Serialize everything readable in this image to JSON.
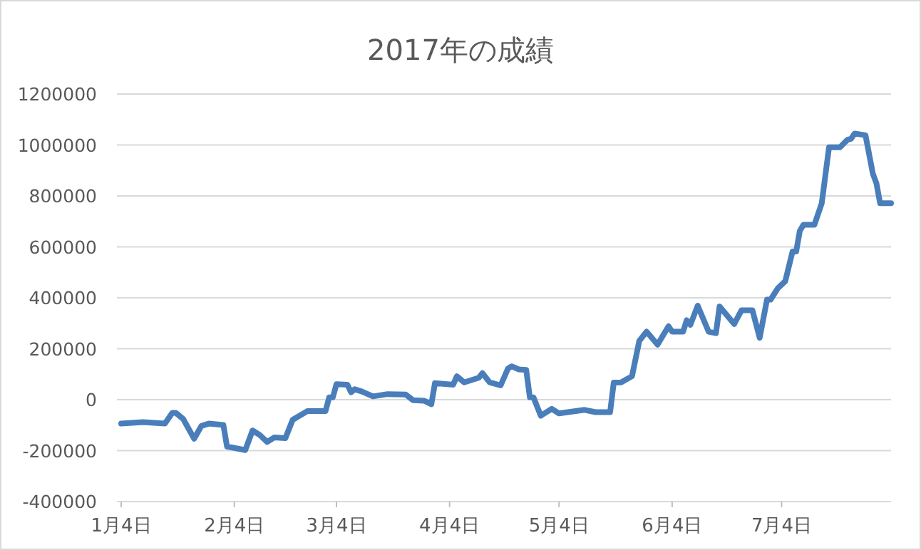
{
  "chart_data": {
    "type": "line",
    "title": "2017年の成績",
    "x": [
      "2017-01-04",
      "2017-01-10",
      "2017-01-16",
      "2017-01-18",
      "2017-01-19",
      "2017-01-21",
      "2017-01-24",
      "2017-01-26",
      "2017-01-28",
      "2017-02-01",
      "2017-02-02",
      "2017-02-07",
      "2017-02-09",
      "2017-02-11",
      "2017-02-13",
      "2017-02-15",
      "2017-02-18",
      "2017-02-20",
      "2017-02-24",
      "2017-03-01",
      "2017-03-02",
      "2017-03-03",
      "2017-03-04",
      "2017-03-07",
      "2017-03-08",
      "2017-03-09",
      "2017-03-11",
      "2017-03-14",
      "2017-03-18",
      "2017-03-23",
      "2017-03-25",
      "2017-03-28",
      "2017-03-30",
      "2017-03-31",
      "2017-04-05",
      "2017-04-06",
      "2017-04-08",
      "2017-04-10",
      "2017-04-12",
      "2017-04-13",
      "2017-04-15",
      "2017-04-18",
      "2017-04-20",
      "2017-04-21",
      "2017-04-23",
      "2017-04-25",
      "2017-04-26",
      "2017-04-27",
      "2017-04-29",
      "2017-05-02",
      "2017-05-04",
      "2017-05-11",
      "2017-05-14",
      "2017-05-18",
      "2017-05-19",
      "2017-05-21",
      "2017-05-24",
      "2017-05-26",
      "2017-05-28",
      "2017-05-31",
      "2017-06-03",
      "2017-06-04",
      "2017-06-07",
      "2017-06-08",
      "2017-06-09",
      "2017-06-11",
      "2017-06-14",
      "2017-06-16",
      "2017-06-17",
      "2017-06-21",
      "2017-06-23",
      "2017-06-26",
      "2017-06-28",
      "2017-06-30",
      "2017-07-01",
      "2017-07-03",
      "2017-07-05",
      "2017-07-07",
      "2017-07-08",
      "2017-07-09",
      "2017-07-10",
      "2017-07-13",
      "2017-07-15",
      "2017-07-17",
      "2017-07-20",
      "2017-07-22",
      "2017-07-23",
      "2017-07-24",
      "2017-07-27",
      "2017-07-29",
      "2017-07-30",
      "2017-07-31",
      "2017-08-03"
    ],
    "series": [
      {
        "color": "#4a7ebb",
        "values": [
          -94000,
          -88000,
          -94000,
          -52000,
          -52000,
          -76000,
          -153000,
          -103000,
          -94000,
          -99000,
          -184000,
          -198000,
          -121000,
          -139000,
          -166000,
          -148000,
          -151000,
          -79000,
          -45000,
          -45000,
          9000,
          9000,
          61000,
          59000,
          29000,
          41000,
          32000,
          13000,
          22000,
          20000,
          -2000,
          -4000,
          -18000,
          65000,
          59000,
          92000,
          68000,
          77000,
          86000,
          104000,
          68000,
          56000,
          122000,
          131000,
          119000,
          117000,
          9000,
          9000,
          -63000,
          -36000,
          -54000,
          -40000,
          -49000,
          -49000,
          67000,
          68000,
          92000,
          231000,
          267000,
          216000,
          288000,
          267000,
          267000,
          312000,
          294000,
          369000,
          267000,
          261000,
          366000,
          297000,
          351000,
          351000,
          243000,
          393000,
          393000,
          438000,
          465000,
          582000,
          582000,
          663000,
          687000,
          687000,
          771000,
          991000,
          991000,
          1020000,
          1024000,
          1045000,
          1038000,
          888000,
          849000,
          771000,
          771000
        ]
      }
    ],
    "xlim": [
      "2017-01-04",
      "2017-08-03"
    ],
    "xticks": [
      {
        "value": "2017-01-04",
        "label": "1月4日"
      },
      {
        "value": "2017-02-04",
        "label": "2月4日"
      },
      {
        "value": "2017-03-04",
        "label": "3月4日"
      },
      {
        "value": "2017-04-04",
        "label": "4月4日"
      },
      {
        "value": "2017-05-04",
        "label": "5月4日"
      },
      {
        "value": "2017-06-04",
        "label": "6月4日"
      },
      {
        "value": "2017-07-04",
        "label": "7月4日"
      }
    ],
    "ylim": [
      -400000,
      1200000
    ],
    "yticks": [
      -400000,
      -200000,
      0,
      200000,
      400000,
      600000,
      800000,
      1000000,
      1200000
    ],
    "grid": "y",
    "marker": "none",
    "line_style": "solid"
  }
}
